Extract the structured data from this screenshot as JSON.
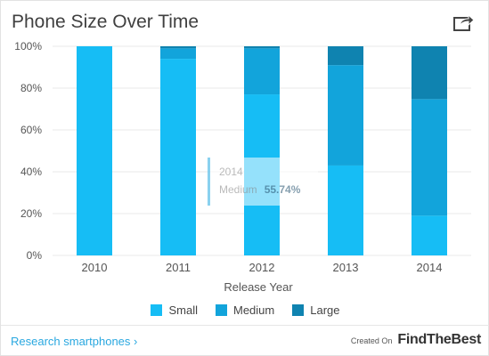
{
  "title": "Phone Size Over Time",
  "share_icon": "share-icon",
  "colors": {
    "small": "#16bdf5",
    "medium": "#12a4db",
    "large": "#0f83b0",
    "grid": "#e8e8e8",
    "axis_text": "#555555",
    "link": "#2aa8e0"
  },
  "chart_data": {
    "type": "bar",
    "stacked": true,
    "categories": [
      "2010",
      "2011",
      "2012",
      "2013",
      "2014"
    ],
    "series": [
      {
        "name": "Small",
        "values": [
          100,
          94,
          77,
          43,
          19
        ]
      },
      {
        "name": "Medium",
        "values": [
          0,
          5,
          22,
          48,
          55.74
        ]
      },
      {
        "name": "Large",
        "values": [
          0,
          1,
          1,
          9,
          25.26
        ]
      }
    ],
    "xlabel": "Release Year",
    "ylabel": "",
    "ylim": [
      0,
      100
    ],
    "yticks": [
      "0%",
      "20%",
      "40%",
      "60%",
      "80%",
      "100%"
    ],
    "grid": true,
    "legend_position": "bottom"
  },
  "tooltip": {
    "year": "2014",
    "series": "Medium",
    "value": "55.74%"
  },
  "footer": {
    "link_text": "Research smartphones ›",
    "created_on": "Created On",
    "brand": "FindTheBest"
  }
}
